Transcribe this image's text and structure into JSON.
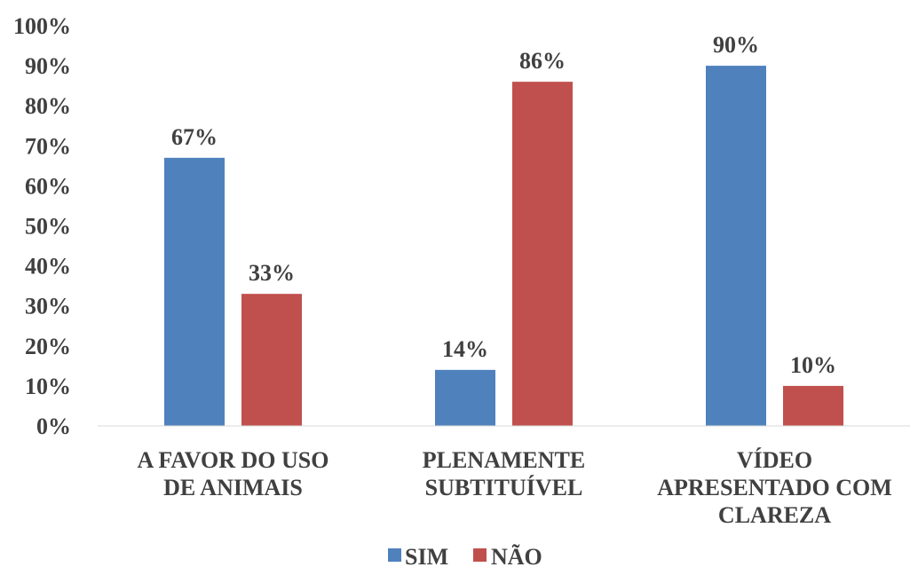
{
  "chart_data": {
    "type": "bar",
    "categories": [
      [
        "A FAVOR DO USO",
        "DE ANIMAIS"
      ],
      [
        "PLENAMENTE",
        "SUBTITUÍVEL"
      ],
      [
        "VÍDEO",
        "APRESENTADO COM",
        "CLAREZA"
      ]
    ],
    "series": [
      {
        "name": "SIM",
        "color": "#4F81BD",
        "values": [
          67,
          14,
          90
        ],
        "labels": [
          "67%",
          "14%",
          "90%"
        ]
      },
      {
        "name": "NÃO",
        "color": "#C0504D",
        "values": [
          33,
          86,
          10
        ],
        "labels": [
          "33%",
          "86%",
          "10%"
        ]
      }
    ],
    "ylim": [
      0,
      100
    ],
    "yticks": [
      "0%",
      "10%",
      "20%",
      "30%",
      "40%",
      "50%",
      "60%",
      "70%",
      "80%",
      "90%",
      "100%"
    ],
    "grid": false,
    "legend": "bottom"
  }
}
